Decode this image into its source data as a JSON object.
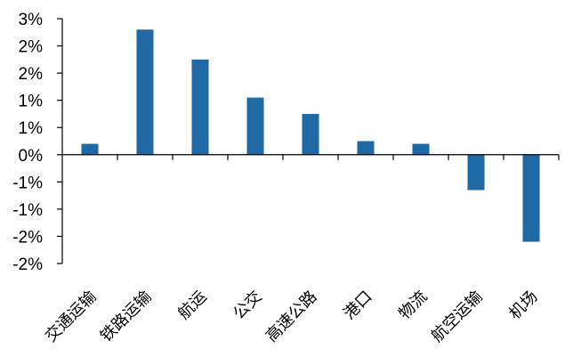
{
  "chart_data": {
    "type": "bar",
    "title": "",
    "xlabel": "",
    "ylabel": "",
    "categories": [
      "交通运输",
      "铁路运输",
      "航运",
      "公交",
      "高速公路",
      "港口",
      "物流",
      "航空运输",
      "机场"
    ],
    "values": [
      0.2,
      2.3,
      1.75,
      1.05,
      0.75,
      0.25,
      0.2,
      -0.65,
      -1.6
    ],
    "ylim": [
      -2,
      2.5
    ],
    "y_tick_values": [
      2.5,
      2.0,
      1.5,
      1.0,
      0.5,
      0.0,
      -0.5,
      -1.0,
      -1.5,
      -2.0
    ],
    "y_tick_labels": [
      "3%",
      "2%",
      "2%",
      "1%",
      "1%",
      "0%",
      "-1%",
      "-1%",
      "-2%",
      "-2%"
    ],
    "bar_color": "#1f6aa5",
    "grid": false,
    "legend": "none"
  }
}
